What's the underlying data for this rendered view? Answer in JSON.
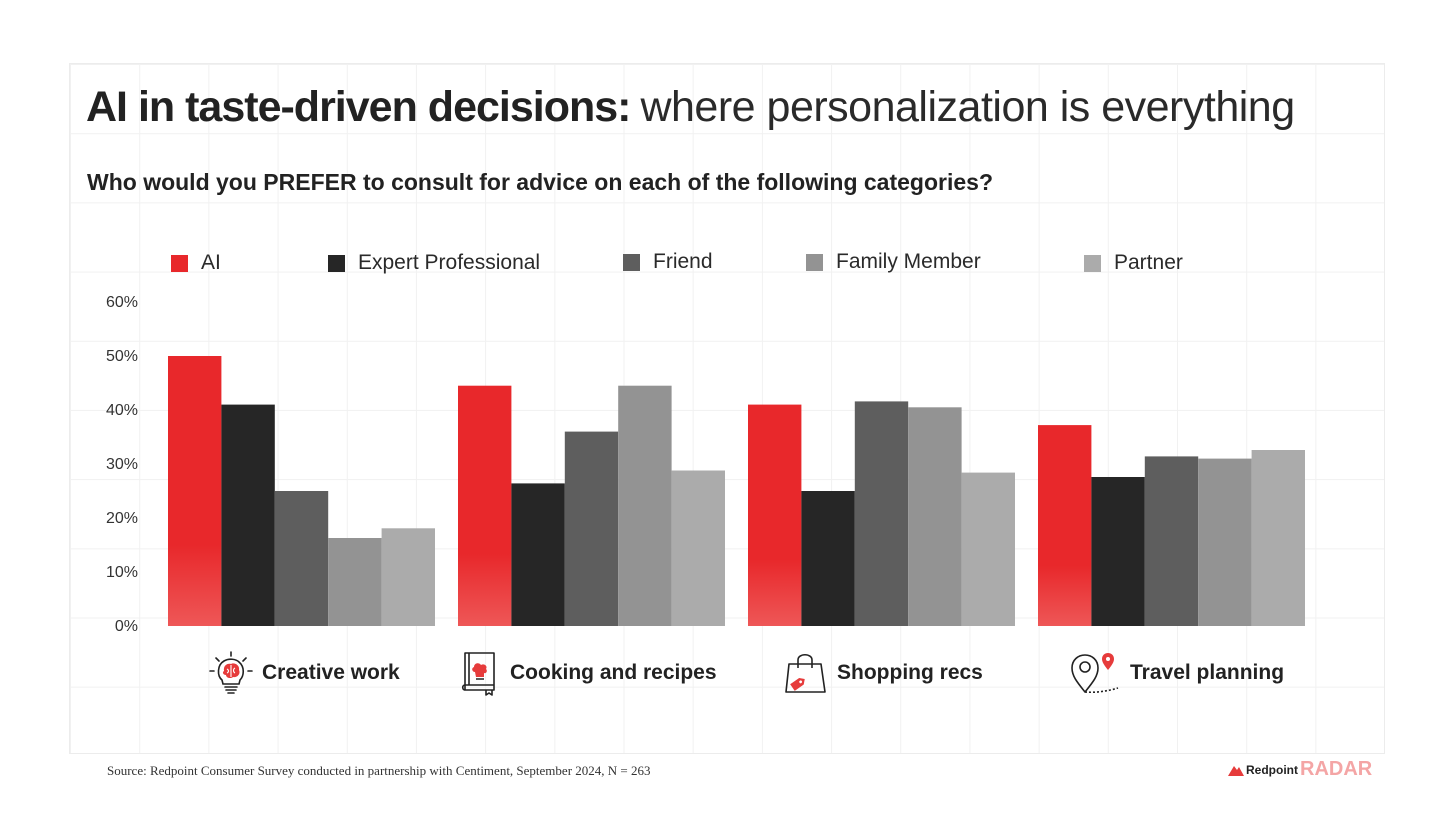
{
  "title": {
    "bold": "AI in taste-driven decisions:",
    "light": "where personalization is everything"
  },
  "subtitle": "Who would you PREFER to consult for advice on each of the following categories?",
  "colors": {
    "ai": "#e8282b",
    "expert": "#262626",
    "friend": "#5e5e5e",
    "family": "#939393",
    "partner": "#ababab",
    "accent": "#e63b3b"
  },
  "chart_data": {
    "type": "bar",
    "title": "Who would you PREFER to consult for advice on each of the following categories?",
    "xlabel": "",
    "ylabel": "",
    "ylim": [
      0,
      60
    ],
    "yticks": [
      "0%",
      "10%",
      "20%",
      "30%",
      "40%",
      "50%",
      "60%"
    ],
    "categories": [
      "Creative work",
      "Cooking and recipes",
      "Shopping recs",
      "Travel planning"
    ],
    "legend_position": "top",
    "series": [
      {
        "name": "AI",
        "color": "#e8282b",
        "values": [
          50,
          44.5,
          41,
          37.2
        ]
      },
      {
        "name": "Expert Professional",
        "color": "#262626",
        "values": [
          41,
          26.4,
          25,
          27.6
        ]
      },
      {
        "name": "Friend",
        "color": "#5e5e5e",
        "values": [
          25,
          36,
          41.6,
          31.4
        ]
      },
      {
        "name": "Family Member",
        "color": "#939393",
        "values": [
          16.3,
          44.5,
          40.5,
          31
        ]
      },
      {
        "name": "Partner",
        "color": "#ababab",
        "values": [
          18.1,
          28.8,
          28.4,
          32.6
        ]
      }
    ]
  },
  "icons": [
    "brain-lightbulb-icon",
    "cookbook-icon",
    "shopping-bag-icon",
    "map-pin-route-icon"
  ],
  "source": "Source: Redpoint Consumer Survey conducted in partnership with Centiment, September 2024, N = 263",
  "brand": {
    "name": "Redpoint",
    "product": "RADAR"
  }
}
